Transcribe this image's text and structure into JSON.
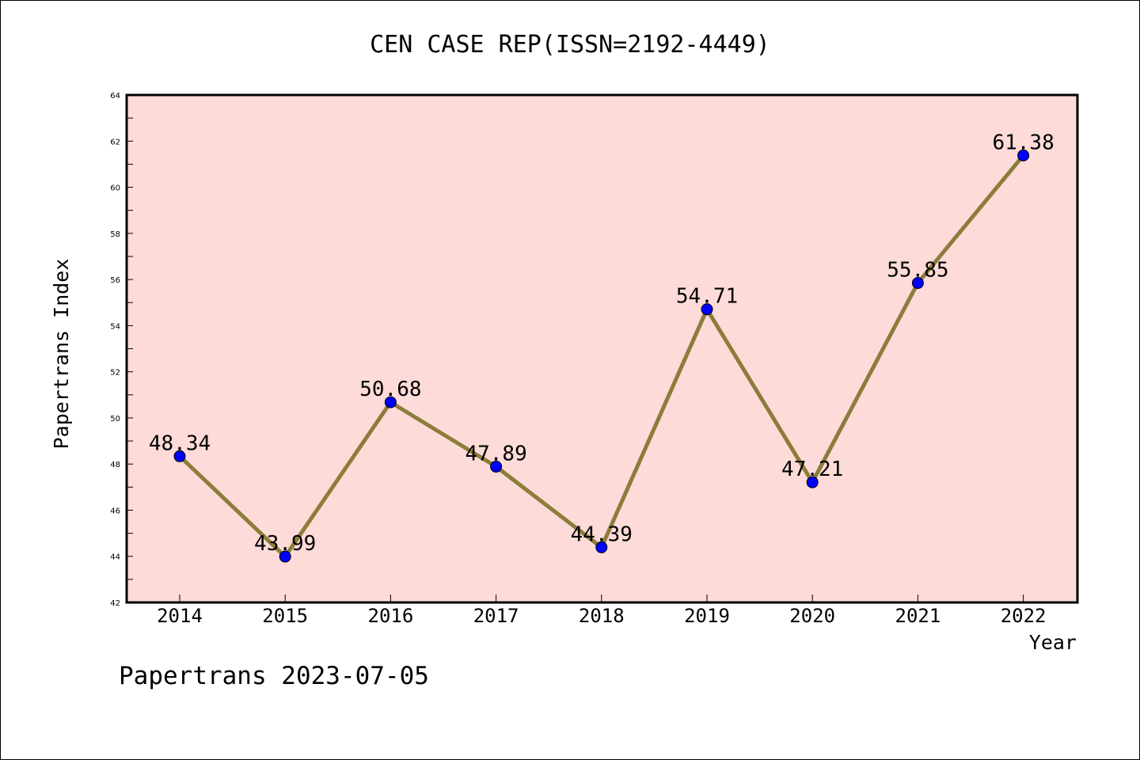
{
  "chart_data": {
    "type": "line",
    "title": "CEN CASE REP(ISSN=2192-4449)",
    "xlabel": "Year",
    "ylabel": "Papertrans Index",
    "footer": "Papertrans 2023-07-05",
    "categories": [
      "2014",
      "2015",
      "2016",
      "2017",
      "2018",
      "2019",
      "2020",
      "2021",
      "2022"
    ],
    "values": [
      48.34,
      43.99,
      50.68,
      47.89,
      44.39,
      54.71,
      47.21,
      55.85,
      61.38
    ],
    "value_labels": [
      "48.34",
      "43.99",
      "50.68",
      "47.89",
      "44.39",
      "54.71",
      "47.21",
      "55.85",
      "61.38"
    ],
    "ylim": [
      42,
      64
    ],
    "yticks": [
      42,
      44,
      46,
      48,
      50,
      52,
      54,
      56,
      58,
      60,
      62,
      64
    ],
    "ytick_labels": [
      "42",
      "44",
      "46",
      "48",
      "50",
      "52",
      "54",
      "56",
      "58",
      "60",
      "62",
      "64"
    ],
    "grid": false,
    "legend": "none",
    "colors": {
      "plot_background": "#fddbd8",
      "line": "#8b7d3a",
      "marker": "#0000ff",
      "axis": "#000000"
    }
  }
}
